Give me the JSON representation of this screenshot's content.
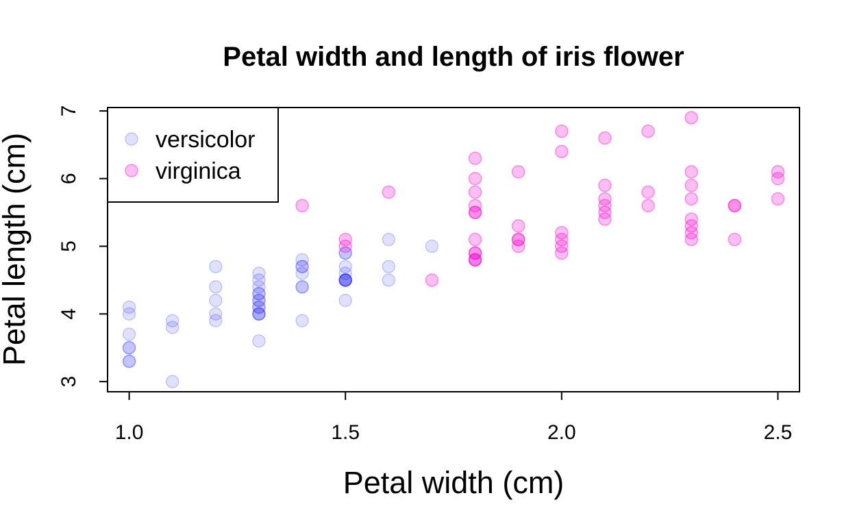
{
  "chart_data": {
    "type": "scatter",
    "title": "Petal width and length of iris flower",
    "xlabel": "Petal width (cm)",
    "ylabel": "Petal length (cm)",
    "xlim": [
      0.95,
      2.55
    ],
    "ylim": [
      2.85,
      7.05
    ],
    "x_ticks": [
      1.0,
      1.5,
      2.0,
      2.5
    ],
    "x_tick_labels": [
      "1.0",
      "1.5",
      "2.0",
      "2.5"
    ],
    "y_ticks": [
      3,
      4,
      5,
      6,
      7
    ],
    "y_tick_labels": [
      "3",
      "4",
      "5",
      "6",
      "7"
    ],
    "grid": false,
    "legend_position": "top-left",
    "series": [
      {
        "name": "versicolor",
        "color": "#0000ff",
        "alpha": 0.12,
        "points": [
          [
            1.4,
            4.7
          ],
          [
            1.5,
            4.5
          ],
          [
            1.5,
            4.9
          ],
          [
            1.3,
            4.0
          ],
          [
            1.5,
            4.6
          ],
          [
            1.3,
            4.5
          ],
          [
            1.6,
            4.7
          ],
          [
            1.0,
            3.3
          ],
          [
            1.3,
            4.6
          ],
          [
            1.4,
            3.9
          ],
          [
            1.0,
            3.5
          ],
          [
            1.5,
            4.2
          ],
          [
            1.0,
            4.0
          ],
          [
            1.4,
            4.7
          ],
          [
            1.3,
            3.6
          ],
          [
            1.4,
            4.4
          ],
          [
            1.5,
            4.5
          ],
          [
            1.0,
            4.1
          ],
          [
            1.5,
            4.5
          ],
          [
            1.1,
            3.9
          ],
          [
            1.8,
            4.8
          ],
          [
            1.3,
            4.0
          ],
          [
            1.5,
            4.9
          ],
          [
            1.2,
            4.7
          ],
          [
            1.3,
            4.3
          ],
          [
            1.4,
            4.4
          ],
          [
            1.4,
            4.8
          ],
          [
            1.7,
            5.0
          ],
          [
            1.5,
            4.5
          ],
          [
            1.0,
            3.5
          ],
          [
            1.1,
            3.8
          ],
          [
            1.0,
            3.7
          ],
          [
            1.2,
            3.9
          ],
          [
            1.6,
            5.1
          ],
          [
            1.5,
            4.5
          ],
          [
            1.6,
            4.5
          ],
          [
            1.5,
            4.7
          ],
          [
            1.3,
            4.4
          ],
          [
            1.3,
            4.1
          ],
          [
            1.3,
            4.0
          ],
          [
            1.2,
            4.4
          ],
          [
            1.4,
            4.6
          ],
          [
            1.2,
            4.0
          ],
          [
            1.0,
            3.3
          ],
          [
            1.3,
            4.2
          ],
          [
            1.2,
            4.2
          ],
          [
            1.3,
            4.2
          ],
          [
            1.3,
            4.3
          ],
          [
            1.1,
            3.0
          ],
          [
            1.3,
            4.1
          ]
        ]
      },
      {
        "name": "virginica",
        "color": "#ff00cc",
        "alpha": 0.25,
        "points": [
          [
            2.5,
            6.0
          ],
          [
            1.9,
            5.1
          ],
          [
            2.1,
            5.9
          ],
          [
            1.8,
            5.6
          ],
          [
            2.2,
            5.8
          ],
          [
            2.1,
            6.6
          ],
          [
            1.7,
            4.5
          ],
          [
            1.8,
            6.3
          ],
          [
            1.8,
            5.8
          ],
          [
            2.5,
            6.1
          ],
          [
            2.0,
            5.1
          ],
          [
            1.9,
            5.3
          ],
          [
            2.1,
            5.5
          ],
          [
            2.0,
            5.0
          ],
          [
            2.4,
            5.1
          ],
          [
            2.3,
            5.3
          ],
          [
            1.8,
            5.5
          ],
          [
            2.2,
            6.7
          ],
          [
            2.3,
            6.9
          ],
          [
            1.5,
            5.0
          ],
          [
            2.3,
            5.7
          ],
          [
            2.0,
            4.9
          ],
          [
            2.0,
            6.7
          ],
          [
            1.8,
            4.9
          ],
          [
            2.1,
            5.7
          ],
          [
            1.8,
            6.0
          ],
          [
            1.8,
            4.8
          ],
          [
            1.8,
            4.9
          ],
          [
            2.1,
            5.6
          ],
          [
            1.6,
            5.8
          ],
          [
            1.9,
            6.1
          ],
          [
            2.0,
            6.4
          ],
          [
            2.2,
            5.6
          ],
          [
            1.5,
            5.1
          ],
          [
            1.4,
            5.6
          ],
          [
            2.3,
            6.1
          ],
          [
            2.4,
            5.6
          ],
          [
            1.8,
            5.5
          ],
          [
            1.8,
            4.8
          ],
          [
            2.1,
            5.4
          ],
          [
            2.4,
            5.6
          ],
          [
            2.3,
            5.1
          ],
          [
            1.9,
            5.1
          ],
          [
            2.3,
            5.9
          ],
          [
            2.5,
            5.7
          ],
          [
            2.3,
            5.2
          ],
          [
            1.9,
            5.0
          ],
          [
            2.0,
            5.2
          ],
          [
            2.3,
            5.4
          ],
          [
            1.8,
            5.1
          ]
        ]
      }
    ]
  }
}
